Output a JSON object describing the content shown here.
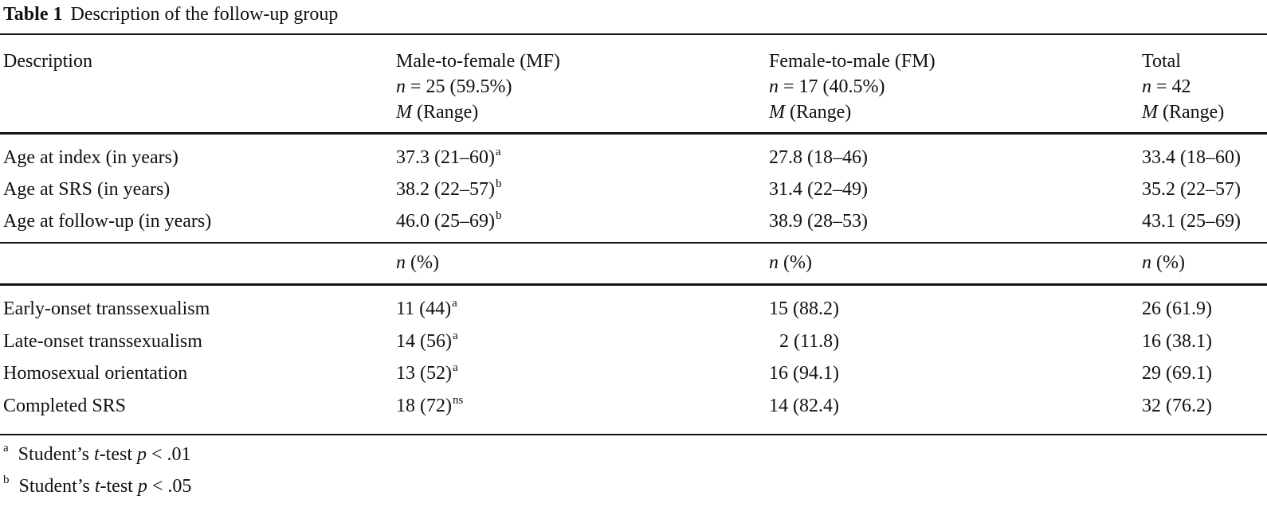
{
  "caption": {
    "label": "Table 1",
    "text": "Description of the follow-up group"
  },
  "header": {
    "description": "Description",
    "mf": {
      "title": "Male-to-female (MF)",
      "n_sym": "n",
      "n_rest": " = 25 (59.5%)",
      "m_sym": "M",
      "m_rest": " (Range)"
    },
    "fm": {
      "title": "Female-to-male (FM)",
      "n_sym": "n",
      "n_rest": " = 17 (40.5%)",
      "m_sym": "M",
      "m_rest": " (Range)"
    },
    "total": {
      "title": "Total",
      "n_sym": "n",
      "n_rest": " = 42",
      "m_sym": "M",
      "m_rest": " (Range)"
    }
  },
  "age_rows": [
    {
      "label": "Age at index (in years)",
      "mf": "37.3 (21–60)",
      "mf_sup": "a",
      "fm": "27.8 (18–46)",
      "total": "33.4 (18–60)"
    },
    {
      "label": "Age at SRS (in years)",
      "mf": "38.2 (22–57)",
      "mf_sup": "b",
      "fm": "31.4 (22–49)",
      "total": "35.2 (22–57)"
    },
    {
      "label": "Age at follow-up (in years)",
      "mf": "46.0 (25–69)",
      "mf_sup": "b",
      "fm": "38.9 (28–53)",
      "total": "43.1 (25–69)"
    }
  ],
  "subheader": {
    "n_sym": "n",
    "pct": " (%)"
  },
  "count_rows": [
    {
      "label": "Early-onset transsexualism",
      "mf": "11 (44)",
      "mf_sup": "a",
      "fm": "15 (88.2)",
      "total": "26 (61.9)"
    },
    {
      "label": "Late-onset transsexualism",
      "mf": "14 (56)",
      "mf_sup": "a",
      "fm": "2 (11.8)",
      "total": "16 (38.1)"
    },
    {
      "label": "Homosexual orientation",
      "mf": "13 (52)",
      "mf_sup": "a",
      "fm": "16 (94.1)",
      "total": "29 (69.1)"
    },
    {
      "label": "Completed SRS",
      "mf": "18 (72)",
      "mf_sup": "ns",
      "fm": "14 (82.4)",
      "total": "32 (76.2)"
    }
  ],
  "footnotes": [
    {
      "mark": "a",
      "pre": "Student’s ",
      "t": "t",
      "mid": "-test ",
      "p": "p",
      "post": " < .01"
    },
    {
      "mark": "b",
      "pre": "Student’s ",
      "t": "t",
      "mid": "-test ",
      "p": "p",
      "post": " < .05"
    }
  ]
}
